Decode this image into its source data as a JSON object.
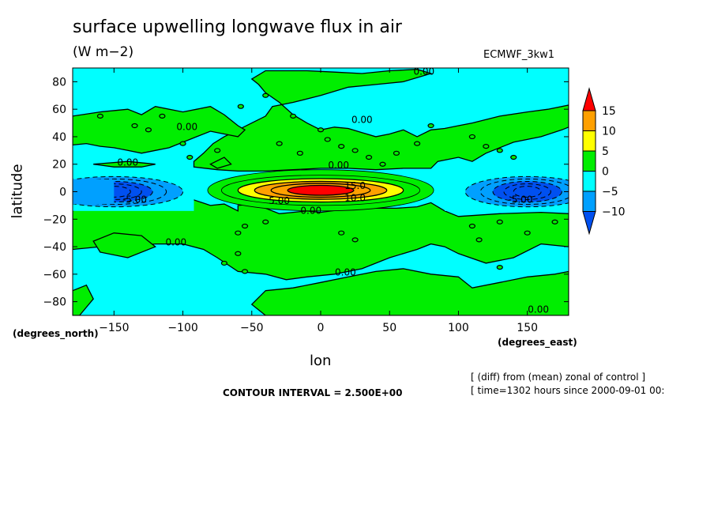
{
  "header": {
    "title": "surface upwelling longwave flux in air",
    "units": "(W m−2)",
    "model": "ECMWF_3kw1"
  },
  "axes": {
    "xlabel": "lon",
    "ylabel": "latitude",
    "x_units": "(degrees_east)",
    "y_units": "(degrees_north)"
  },
  "footer": {
    "contour_interval": "CONTOUR INTERVAL = 2.500E+00",
    "note_line1": "[ (diff) from (mean) zonal of control ]",
    "note_line2": "[ time=1302 hours since 2000-09-01 00:"
  },
  "colors": {
    "ocean": "#00ffff",
    "land": "#00ee00",
    "neg5": "#00a0ff",
    "neg10": "#0050f0",
    "pos5": "#ffff00",
    "pos10": "#ffa000",
    "pos15": "#ff0000"
  },
  "chart_data": {
    "type": "contour",
    "xlim": [
      -180,
      180
    ],
    "ylim": [
      -90,
      90
    ],
    "x_ticks": [
      -150,
      -100,
      -50,
      0,
      50,
      100,
      150
    ],
    "x_tick_labels": [
      "−150",
      "−100",
      "−50",
      "0",
      "50",
      "100",
      "150"
    ],
    "y_ticks": [
      80,
      60,
      40,
      20,
      0,
      -20,
      -40,
      -60,
      -80
    ],
    "y_tick_labels": [
      "80",
      "60",
      "40",
      "20",
      "0",
      "−20",
      "−40",
      "−60",
      "−80"
    ],
    "colorbar": {
      "levels": [
        -10,
        -5,
        0,
        5,
        10,
        15
      ],
      "tick_labels": [
        "−10",
        "−5",
        "0",
        "5",
        "10",
        "15"
      ],
      "colors": [
        "#0050f0",
        "#00a0ff",
        "#00ffff",
        "#00ee00",
        "#ffff00",
        "#ffa000",
        "#ff0000"
      ]
    },
    "contour_interval": 2.5,
    "features": [
      {
        "kind": "positive-max",
        "lon": 0,
        "lat": 1,
        "value": 15
      },
      {
        "kind": "negative-min",
        "lon": -150,
        "lat": 0,
        "value": -10
      },
      {
        "kind": "negative-min",
        "lon": 150,
        "lat": 0,
        "value": -10
      }
    ],
    "contour_labels": [
      {
        "text": "0.00",
        "lon": 75,
        "lat": 85
      },
      {
        "text": "0.00",
        "lon": 30,
        "lat": 50
      },
      {
        "text": "0.00",
        "lon": -97,
        "lat": 45
      },
      {
        "text": "0.00",
        "lon": -140,
        "lat": 19
      },
      {
        "text": "0.00",
        "lon": 13,
        "lat": 17
      },
      {
        "text": "15.0",
        "lon": 25,
        "lat": 2
      },
      {
        "text": "10.0",
        "lon": 25,
        "lat": -7
      },
      {
        "text": "5.00",
        "lon": -30,
        "lat": -9
      },
      {
        "text": "0.00",
        "lon": -7,
        "lat": -16
      },
      {
        "text": "-5.00",
        "lon": -135,
        "lat": -8
      },
      {
        "text": "-5.00",
        "lon": 145,
        "lat": -8
      },
      {
        "text": "0.00",
        "lon": -105,
        "lat": -39
      },
      {
        "text": "0.00",
        "lon": 18,
        "lat": -61
      },
      {
        "text": "0.00",
        "lon": 158,
        "lat": -88
      }
    ]
  }
}
